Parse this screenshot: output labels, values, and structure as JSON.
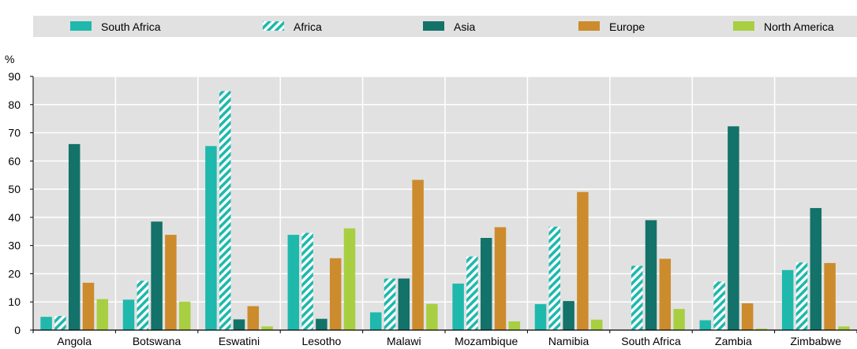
{
  "chart_data": {
    "type": "bar",
    "ylabel": "%",
    "ylim": [
      0,
      90
    ],
    "yticks": [
      0,
      10,
      20,
      30,
      40,
      50,
      60,
      70,
      80,
      90
    ],
    "grid": true,
    "legend_position": "top",
    "categories": [
      "Angola",
      "Botswana",
      "Eswatini",
      "Lesotho",
      "Malawi",
      "Mozambique",
      "Namibia",
      "South Africa",
      "Zambia",
      "Zimbabwe"
    ],
    "series": [
      {
        "name": "South Africa",
        "color": "#1fb8ad",
        "pattern": "solid",
        "values": [
          4.7,
          10.8,
          65.3,
          33.8,
          6.3,
          16.5,
          9.2,
          0,
          3.5,
          21.3
        ]
      },
      {
        "name": "Africa",
        "color": "#1fb8ad",
        "pattern": "diagonal-stripes",
        "values": [
          5,
          17.5,
          84.8,
          34.5,
          18.3,
          26.1,
          36.7,
          22.8,
          17.2,
          24
        ]
      },
      {
        "name": "Asia",
        "color": "#137269",
        "pattern": "solid",
        "values": [
          66,
          38.5,
          3.8,
          4,
          18.3,
          32.7,
          10.3,
          39,
          72.3,
          43.3
        ]
      },
      {
        "name": "Europe",
        "color": "#cc8b2d",
        "pattern": "solid",
        "values": [
          16.8,
          33.8,
          8.5,
          25.5,
          53.3,
          36.5,
          49,
          25.3,
          9.5,
          23.8
        ]
      },
      {
        "name": "North America",
        "color": "#a8cf41",
        "pattern": "solid",
        "values": [
          11,
          10.1,
          1.3,
          36.1,
          9.3,
          3.1,
          3.7,
          7.5,
          0.5,
          1.3
        ]
      }
    ]
  }
}
